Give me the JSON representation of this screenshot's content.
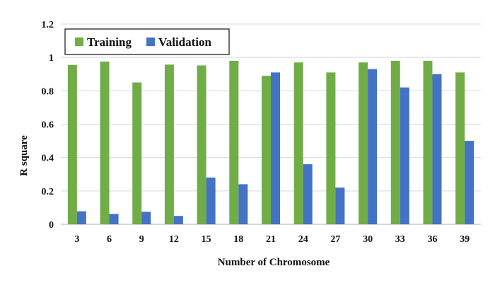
{
  "chart_data": {
    "type": "bar",
    "title": "",
    "xlabel": "Number of Chromosome",
    "ylabel": "R square",
    "ylim": [
      0,
      1.2
    ],
    "yticks": [
      "0",
      "0.2",
      "0.4",
      "0.6",
      "0.8",
      "1",
      "1.2"
    ],
    "ytick_values": [
      0,
      0.2,
      0.4,
      0.6,
      0.8,
      1.0,
      1.2
    ],
    "categories": [
      "3",
      "6",
      "9",
      "12",
      "15",
      "18",
      "21",
      "24",
      "27",
      "30",
      "33",
      "36",
      "39"
    ],
    "series": [
      {
        "name": "Training",
        "color": "#70AD47",
        "values": [
          0.955,
          0.975,
          0.85,
          0.957,
          0.952,
          0.98,
          0.89,
          0.97,
          0.91,
          0.97,
          0.98,
          0.98,
          0.91
        ]
      },
      {
        "name": "Validation",
        "color": "#4472C4",
        "values": [
          0.078,
          0.062,
          0.075,
          0.05,
          0.28,
          0.24,
          0.91,
          0.36,
          0.22,
          0.93,
          0.82,
          0.9,
          0.5
        ]
      }
    ],
    "grid": true,
    "legend": "top-left"
  }
}
